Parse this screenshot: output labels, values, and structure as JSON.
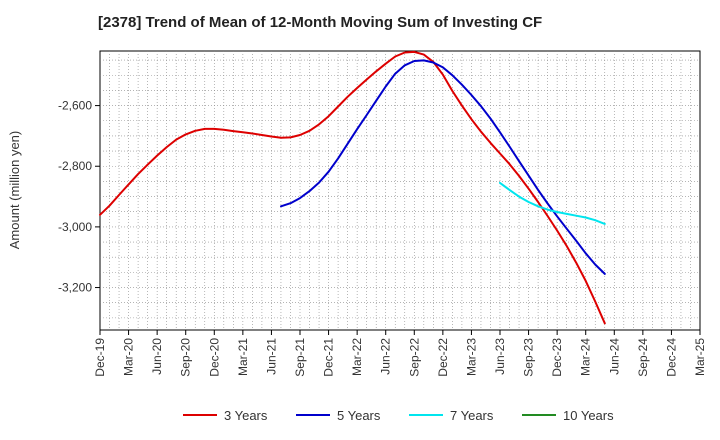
{
  "chart_data": {
    "type": "line",
    "title": "[2378]  Trend of Mean of 12-Month Moving Sum of Investing CF",
    "ylabel": "Amount (million yen)",
    "xlabel": "",
    "ylim": [
      -3340,
      -2420
    ],
    "yticks": [
      -2600,
      -2800,
      -3000,
      -3200
    ],
    "ytick_labels": [
      "-2,600",
      "-2,800",
      "-3,000",
      "-3,200"
    ],
    "x_tick_labels": [
      "Dec-19",
      "Mar-20",
      "Jun-20",
      "Sep-20",
      "Dec-20",
      "Mar-21",
      "Jun-21",
      "Sep-21",
      "Dec-21",
      "Mar-22",
      "Jun-22",
      "Sep-22",
      "Dec-22",
      "Mar-23",
      "Jun-23",
      "Sep-23",
      "Dec-23",
      "Mar-24",
      "Jun-24",
      "Sep-24",
      "Dec-24",
      "Mar-25"
    ],
    "grid": true,
    "legend_position": "bottom",
    "series": [
      {
        "name": "3 Years",
        "color": "#dd0000",
        "values": [
          -2960,
          -2930,
          -2895,
          -2860,
          -2826,
          -2795,
          -2765,
          -2737,
          -2712,
          -2695,
          -2683,
          -2677,
          -2677,
          -2680,
          -2684,
          -2688,
          -2692,
          -2697,
          -2702,
          -2706,
          -2705,
          -2697,
          -2683,
          -2662,
          -2635,
          -2603,
          -2571,
          -2542,
          -2514,
          -2487,
          -2462,
          -2438,
          -2425,
          -2423,
          -2432,
          -2456,
          -2498,
          -2552,
          -2600,
          -2645,
          -2686,
          -2723,
          -2758,
          -2793,
          -2832,
          -2874,
          -2918,
          -2964,
          -3012,
          -3063,
          -3118,
          -3178,
          -3246,
          -3318
        ]
      },
      {
        "name": "5 Years",
        "color": "#0000cc",
        "values": [
          null,
          null,
          null,
          null,
          null,
          null,
          null,
          null,
          null,
          null,
          null,
          null,
          null,
          null,
          null,
          null,
          null,
          null,
          null,
          -2932,
          -2922,
          -2905,
          -2882,
          -2854,
          -2818,
          -2774,
          -2726,
          -2678,
          -2631,
          -2584,
          -2537,
          -2495,
          -2467,
          -2453,
          -2451,
          -2458,
          -2474,
          -2500,
          -2531,
          -2565,
          -2602,
          -2643,
          -2688,
          -2735,
          -2783,
          -2831,
          -2878,
          -2923,
          -2965,
          -3006,
          -3046,
          -3087,
          -3124,
          -3155
        ]
      },
      {
        "name": "7 Years",
        "color": "#00e5ee",
        "values": [
          null,
          null,
          null,
          null,
          null,
          null,
          null,
          null,
          null,
          null,
          null,
          null,
          null,
          null,
          null,
          null,
          null,
          null,
          null,
          null,
          null,
          null,
          null,
          null,
          null,
          null,
          null,
          null,
          null,
          null,
          null,
          null,
          null,
          null,
          null,
          null,
          null,
          null,
          null,
          null,
          null,
          null,
          -2855,
          -2878,
          -2900,
          -2918,
          -2932,
          -2943,
          -2951,
          -2957,
          -2963,
          -2969,
          -2978,
          -2990
        ]
      },
      {
        "name": "10 Years",
        "color": "#228b22",
        "values": []
      }
    ]
  }
}
